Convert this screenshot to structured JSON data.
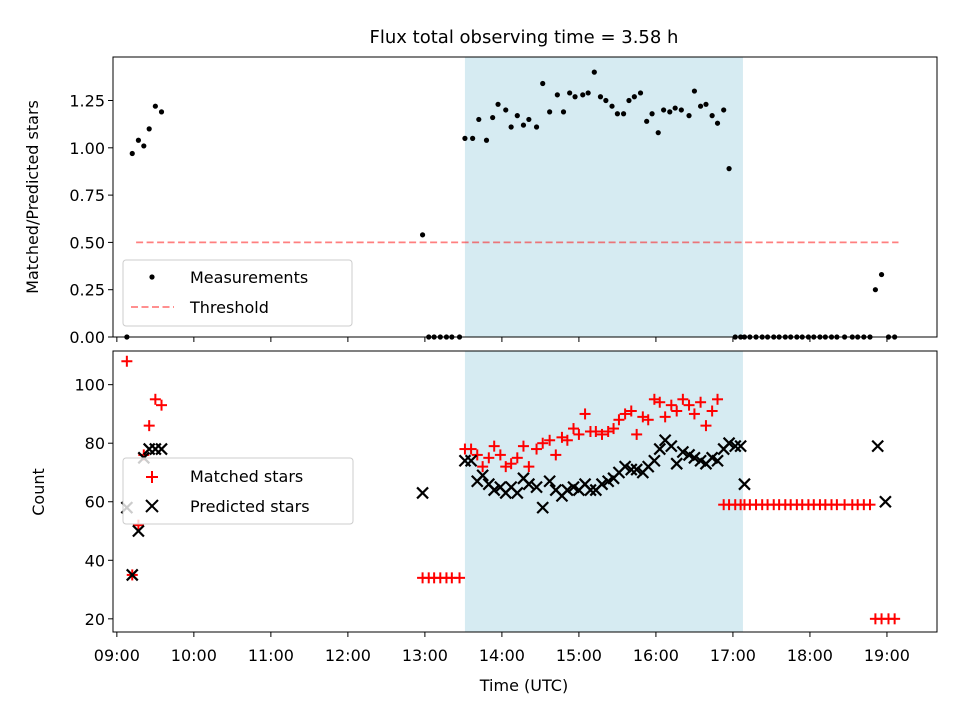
{
  "chart_data": {
    "type": "scatter",
    "title": "Flux total observing time = 3.58 h",
    "xlabel": "Time (UTC)",
    "x_tick_labels": [
      "09:00",
      "10:00",
      "11:00",
      "12:00",
      "13:00",
      "14:00",
      "15:00",
      "16:00",
      "17:00",
      "18:00",
      "19:00"
    ],
    "x_ticks_hours": [
      9,
      10,
      11,
      12,
      13,
      14,
      15,
      16,
      17,
      18,
      19
    ],
    "xlim_hours": [
      8.95,
      19.65
    ],
    "shaded_interval_hours": [
      13.52,
      17.13
    ],
    "shade_color": "#add8e6",
    "top_panel": {
      "ylabel": "Matched/Predicted stars",
      "ylim": [
        0,
        1.48
      ],
      "y_tick_labels": [
        "0.00",
        "0.25",
        "0.50",
        "0.75",
        "1.00",
        "1.25"
      ],
      "y_ticks": [
        0,
        0.25,
        0.5,
        0.75,
        1.0,
        1.25
      ],
      "threshold": {
        "name": "Threshold",
        "value": 0.5,
        "x_range_hours": [
          9.25,
          19.15
        ],
        "color": "#ff0000",
        "opacity": 0.5
      },
      "legend": [
        "Measurements",
        "Threshold"
      ],
      "measurements": {
        "name": "Measurements",
        "color": "#000000",
        "x": [
          9.13,
          9.2,
          9.28,
          9.35,
          9.42,
          9.5,
          9.58,
          12.97,
          13.05,
          13.12,
          13.2,
          13.28,
          13.35,
          13.45,
          13.52,
          13.62,
          13.7,
          13.8,
          13.88,
          13.95,
          14.05,
          14.12,
          14.2,
          14.28,
          14.35,
          14.45,
          14.53,
          14.62,
          14.72,
          14.8,
          14.88,
          14.95,
          15.05,
          15.12,
          15.2,
          15.28,
          15.35,
          15.43,
          15.5,
          15.58,
          15.65,
          15.72,
          15.8,
          15.88,
          15.95,
          16.03,
          16.1,
          16.18,
          16.25,
          16.33,
          16.43,
          16.5,
          16.58,
          16.65,
          16.73,
          16.8,
          16.88,
          16.95,
          17.03,
          17.1,
          17.15,
          17.22,
          17.3,
          17.38,
          17.45,
          17.53,
          17.6,
          17.68,
          17.75,
          17.83,
          17.9,
          17.98,
          18.05,
          18.13,
          18.2,
          18.28,
          18.35,
          18.45,
          18.55,
          18.62,
          18.7,
          18.78,
          18.85,
          18.93,
          19.02,
          19.1
        ],
        "y": [
          0.0,
          0.97,
          1.04,
          1.01,
          1.1,
          1.22,
          1.19,
          0.54,
          0.0,
          0.0,
          0.0,
          0.0,
          0.0,
          0.0,
          1.05,
          1.05,
          1.15,
          1.04,
          1.16,
          1.23,
          1.2,
          1.11,
          1.17,
          1.12,
          1.15,
          1.11,
          1.34,
          1.19,
          1.28,
          1.19,
          1.29,
          1.27,
          1.28,
          1.29,
          1.4,
          1.27,
          1.25,
          1.22,
          1.18,
          1.18,
          1.25,
          1.27,
          1.29,
          1.14,
          1.18,
          1.08,
          1.2,
          1.19,
          1.21,
          1.2,
          1.17,
          1.3,
          1.22,
          1.23,
          1.17,
          1.13,
          1.2,
          0.89,
          0.0,
          0.0,
          0.0,
          0.0,
          0.0,
          0.0,
          0.0,
          0.0,
          0.0,
          0.0,
          0.0,
          0.0,
          0.0,
          0.0,
          0.0,
          0.0,
          0.0,
          0.0,
          0.0,
          0.0,
          0.0,
          0.0,
          0.0,
          0.0,
          0.25,
          0.33,
          0.0,
          0.0
        ]
      }
    },
    "bottom_panel": {
      "ylabel": "Count",
      "ylim": [
        15.5,
        111.5
      ],
      "y_tick_labels": [
        "20",
        "40",
        "60",
        "80",
        "100"
      ],
      "y_ticks": [
        20,
        40,
        60,
        80,
        100
      ],
      "legend": [
        "Matched stars",
        "Predicted stars"
      ],
      "series": [
        {
          "name": "Matched stars",
          "marker": "+",
          "color": "#ff0000",
          "x": [
            9.13,
            9.2,
            9.28,
            9.35,
            9.42,
            9.5,
            9.58,
            12.97,
            13.05,
            13.12,
            13.2,
            13.28,
            13.35,
            13.45,
            13.52,
            13.6,
            13.68,
            13.75,
            13.83,
            13.9,
            13.98,
            14.05,
            14.12,
            14.2,
            14.28,
            14.35,
            14.45,
            14.53,
            14.62,
            14.7,
            14.78,
            14.85,
            14.93,
            15.0,
            15.08,
            15.15,
            15.22,
            15.3,
            15.38,
            15.45,
            15.52,
            15.6,
            15.68,
            15.75,
            15.83,
            15.9,
            15.98,
            16.05,
            16.12,
            16.2,
            16.27,
            16.35,
            16.43,
            16.5,
            16.58,
            16.65,
            16.73,
            16.8,
            16.88,
            16.95,
            17.03,
            17.1,
            17.15,
            17.22,
            17.3,
            17.38,
            17.45,
            17.53,
            17.6,
            17.68,
            17.75,
            17.83,
            17.9,
            17.98,
            18.05,
            18.13,
            18.2,
            18.28,
            18.35,
            18.45,
            18.55,
            18.62,
            18.7,
            18.78,
            18.85,
            18.93,
            19.02,
            19.1
          ],
          "y": [
            108,
            35,
            52,
            76,
            86,
            95,
            93,
            34,
            34,
            34,
            34,
            34,
            34,
            34,
            78,
            78,
            76,
            72,
            75,
            79,
            76,
            72,
            73,
            75,
            79,
            72,
            78,
            80,
            81,
            76,
            82,
            81,
            85,
            83,
            90,
            84,
            84,
            83,
            84,
            85,
            88,
            90,
            91,
            83,
            89,
            88,
            95,
            94,
            89,
            93,
            91,
            95,
            93,
            90,
            94,
            86,
            91,
            95,
            59,
            59,
            59,
            59,
            59,
            59,
            59,
            59,
            59,
            59,
            59,
            59,
            59,
            59,
            59,
            59,
            59,
            59,
            59,
            59,
            59,
            59,
            59,
            59,
            59,
            59,
            20,
            20,
            20,
            20
          ],
          "note": "x/y arrays align by index"
        },
        {
          "name": "Predicted stars",
          "marker": "x",
          "color": "#000000",
          "x": [
            9.13,
            9.2,
            9.28,
            9.35,
            9.42,
            9.5,
            9.58,
            12.97,
            13.52,
            13.6,
            13.68,
            13.75,
            13.83,
            13.9,
            13.98,
            14.05,
            14.12,
            14.2,
            14.28,
            14.35,
            14.45,
            14.53,
            14.62,
            14.7,
            14.78,
            14.85,
            14.93,
            15.0,
            15.08,
            15.15,
            15.22,
            15.3,
            15.38,
            15.45,
            15.52,
            15.6,
            15.68,
            15.75,
            15.83,
            15.9,
            15.98,
            16.05,
            16.12,
            16.2,
            16.27,
            16.35,
            16.43,
            16.5,
            16.58,
            16.65,
            16.73,
            16.8,
            16.88,
            16.95,
            17.03,
            17.1,
            17.15,
            18.88,
            18.98
          ],
          "y": [
            58,
            35,
            50,
            75,
            78,
            78,
            78,
            63,
            74,
            74,
            67,
            69,
            66,
            64,
            65,
            63,
            65,
            63,
            68,
            66,
            65,
            58,
            67,
            64,
            62,
            64,
            65,
            64,
            66,
            64,
            64,
            66,
            67,
            68,
            70,
            72,
            71,
            71,
            70,
            72,
            74,
            78,
            81,
            79,
            73,
            77,
            76,
            75,
            74,
            73,
            75,
            74,
            78,
            80,
            79,
            79,
            66,
            79,
            60
          ]
        }
      ]
    }
  }
}
